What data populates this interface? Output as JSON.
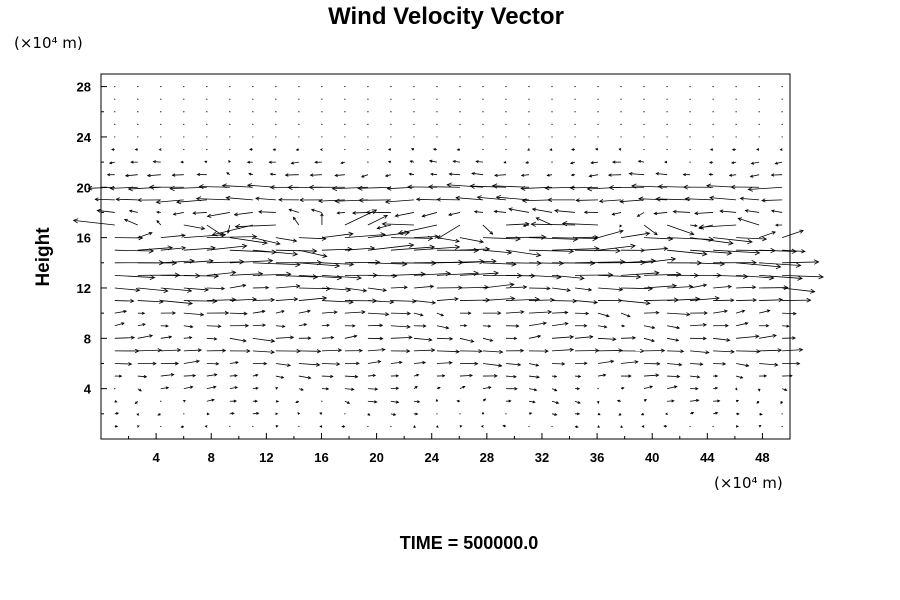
{
  "chart_data": {
    "type": "vector-field",
    "title": "Wind Velocity Vector",
    "ylabel": "Height",
    "xunit": "(×10⁴ m)",
    "yunit": "(×10⁴ m)",
    "xlim": [
      0,
      50
    ],
    "ylim": [
      0,
      29
    ],
    "xticks": [
      4,
      8,
      12,
      16,
      20,
      24,
      28,
      32,
      36,
      40,
      44,
      48
    ],
    "yticks": [
      4,
      8,
      12,
      16,
      20,
      24,
      28
    ],
    "grid": false,
    "field": {
      "x_spacing": 1.67,
      "y_levels": [
        1,
        2,
        3,
        4,
        5,
        6,
        7,
        8,
        9,
        10,
        11,
        12,
        13,
        14,
        15,
        16,
        17,
        18,
        19,
        20,
        21,
        22,
        23,
        24,
        25,
        26,
        27,
        28
      ],
      "wind_profile": [
        {
          "y": 1,
          "u": 0.0,
          "noise": 0.15
        },
        {
          "y": 2,
          "u": 0.1,
          "noise": 0.2
        },
        {
          "y": 3,
          "u": 0.2,
          "noise": 0.3
        },
        {
          "y": 4,
          "u": 0.4,
          "noise": 0.3
        },
        {
          "y": 5,
          "u": 0.6,
          "noise": 0.3
        },
        {
          "y": 6,
          "u": 1.0,
          "noise": 0.3
        },
        {
          "y": 7,
          "u": 1.4,
          "noise": 0.2
        },
        {
          "y": 8,
          "u": 1.0,
          "noise": 0.4
        },
        {
          "y": 9,
          "u": 0.8,
          "noise": 0.4
        },
        {
          "y": 10,
          "u": 1.0,
          "noise": 0.4
        },
        {
          "y": 11,
          "u": 1.8,
          "noise": 0.4
        },
        {
          "y": 12,
          "u": 1.6,
          "noise": 0.5
        },
        {
          "y": 13,
          "u": 2.5,
          "noise": 0.4
        },
        {
          "y": 14,
          "u": 2.7,
          "noise": 0.5
        },
        {
          "y": 15,
          "u": 2.6,
          "noise": 0.8
        },
        {
          "y": 16,
          "u": 2.3,
          "noise": 0.9
        },
        {
          "y": 17,
          "u": -0.5,
          "noise": 1.8
        },
        {
          "y": 18,
          "u": -1.0,
          "noise": 0.5
        },
        {
          "y": 19,
          "u": -1.8,
          "noise": 0.4
        },
        {
          "y": 20,
          "u": -2.2,
          "noise": 0.3
        },
        {
          "y": 21,
          "u": -0.6,
          "noise": 0.3
        },
        {
          "y": 22,
          "u": -0.3,
          "noise": 0.2
        },
        {
          "y": 23,
          "u": -0.1,
          "noise": 0.1
        },
        {
          "y": 24,
          "u": 0.0,
          "noise": 0.05
        },
        {
          "y": 25,
          "u": 0.0,
          "noise": 0.05
        },
        {
          "y": 26,
          "u": 0.0,
          "noise": 0.05
        },
        {
          "y": 27,
          "u": 0.0,
          "noise": 0.05
        },
        {
          "y": 28,
          "u": 0.0,
          "noise": 0.05
        }
      ]
    }
  },
  "footer": {
    "time_label": "TIME = 500000.0"
  }
}
